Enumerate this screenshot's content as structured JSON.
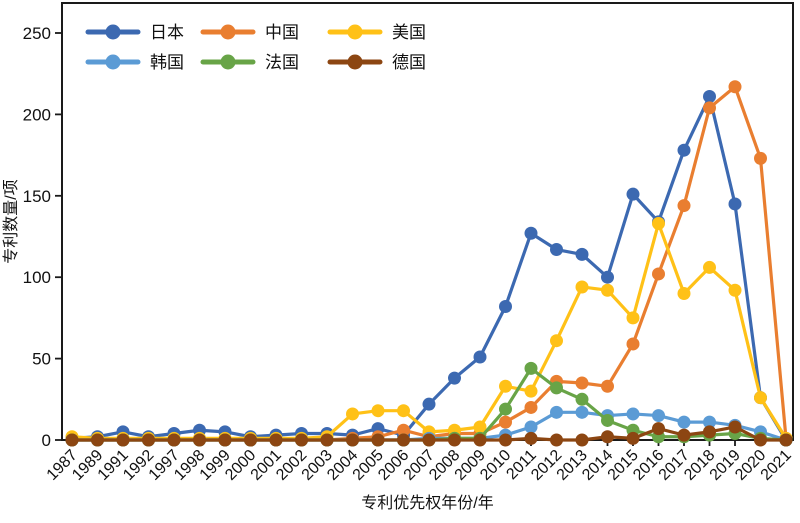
{
  "chart_data": {
    "type": "line",
    "title": "",
    "xlabel": "专利优先权年份/年",
    "ylabel": "专利数量/项",
    "ylim": [
      0,
      250
    ],
    "yticks": [
      0,
      50,
      100,
      150,
      200,
      250
    ],
    "grid": false,
    "legend_position": "top-left-inside",
    "legend_rows": [
      [
        "japan",
        "china",
        "usa"
      ],
      [
        "korea",
        "france",
        "germany"
      ]
    ],
    "frame_color": "#1a1a1a",
    "categories": [
      "1987",
      "1989",
      "1991",
      "1992",
      "1997",
      "1998",
      "1999",
      "2000",
      "2001",
      "2002",
      "2003",
      "2004",
      "2005",
      "2006",
      "2007",
      "2008",
      "2009",
      "2010",
      "2011",
      "2012",
      "2013",
      "2014",
      "2015",
      "2016",
      "2017",
      "2018",
      "2019",
      "2020",
      "2021"
    ],
    "series": [
      {
        "id": "japan",
        "name": "日本",
        "color": "#3C69B1",
        "values": [
          1,
          2,
          5,
          2,
          4,
          6,
          5,
          2,
          3,
          4,
          4,
          3,
          7,
          3,
          22,
          38,
          51,
          82,
          127,
          117,
          114,
          100,
          151,
          134,
          178,
          211,
          145,
          26,
          0
        ]
      },
      {
        "id": "china",
        "name": "中国",
        "color": "#E97E30",
        "values": [
          0,
          0,
          0,
          0,
          0,
          0,
          0,
          0,
          0,
          0,
          0,
          1,
          2,
          6,
          2,
          4,
          4,
          11,
          20,
          36,
          35,
          33,
          59,
          102,
          144,
          204,
          217,
          173,
          1
        ]
      },
      {
        "id": "usa",
        "name": "美国",
        "color": "#FFC117",
        "values": [
          2,
          1,
          1,
          1,
          1,
          1,
          1,
          1,
          1,
          1,
          2,
          16,
          18,
          18,
          5,
          6,
          8,
          33,
          30,
          61,
          94,
          92,
          75,
          133,
          90,
          106,
          92,
          26,
          1
        ]
      },
      {
        "id": "korea",
        "name": "韩国",
        "color": "#5B9BD5",
        "values": [
          0,
          0,
          0,
          0,
          0,
          0,
          0,
          0,
          0,
          0,
          0,
          0,
          0,
          0,
          1,
          1,
          1,
          3,
          8,
          17,
          17,
          15,
          16,
          15,
          11,
          11,
          9,
          5,
          0
        ]
      },
      {
        "id": "france",
        "name": "法国",
        "color": "#68A447",
        "values": [
          0,
          0,
          0,
          0,
          0,
          0,
          0,
          0,
          0,
          0,
          0,
          0,
          0,
          0,
          0,
          1,
          1,
          19,
          44,
          32,
          25,
          12,
          6,
          2,
          2,
          3,
          4,
          1,
          0
        ]
      },
      {
        "id": "germany",
        "name": "德国",
        "color": "#8C4612",
        "values": [
          0,
          0,
          0,
          0,
          0,
          0,
          0,
          0,
          0,
          0,
          0,
          0,
          0,
          0,
          0,
          0,
          0,
          0,
          1,
          0,
          0,
          2,
          1,
          7,
          3,
          5,
          8,
          0,
          0
        ]
      }
    ]
  }
}
